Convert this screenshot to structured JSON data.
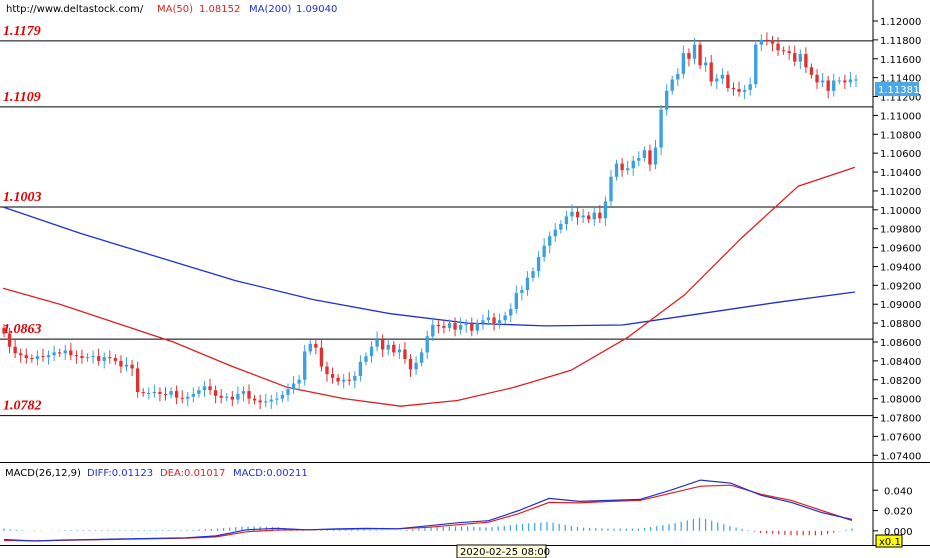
{
  "header": {
    "url": "http://www.deltastock.com/",
    "ma50_label": "MA(50)",
    "ma50_value": "1.08152",
    "ma200_label": "MA(200)",
    "ma200_value": "1.09040"
  },
  "macd_header": {
    "label": "MACD(26,12,9)",
    "diff": "DIFF:0.01123",
    "dea": "DEA:0.01017",
    "macd": "MACD:0.00211"
  },
  "current_price": "1.11381",
  "time_label": "2020-02-25 08:00",
  "zoom_label": "x0.1",
  "colors": {
    "bull": "#3aa0e0",
    "bear": "#e03030",
    "ma50": "#e02020",
    "ma200": "#2030d0",
    "level_text": "#e00000",
    "grid": "#000000"
  },
  "chart_data": [
    {
      "type": "candlestick",
      "series_name": "price",
      "ylim": [
        1.0735,
        1.1218
      ],
      "y_ticks": [
        "1.12000",
        "1.11800",
        "1.11600",
        "1.11400",
        "1.11200",
        "1.11000",
        "1.10800",
        "1.10600",
        "1.10400",
        "1.10200",
        "1.10000",
        "1.09800",
        "1.09600",
        "1.09400",
        "1.09200",
        "1.09000",
        "1.08800",
        "1.08600",
        "1.08400",
        "1.08200",
        "1.08000",
        "1.07800",
        "1.07600",
        "1.07400"
      ],
      "levels": [
        "1.1179",
        "1.1109",
        "1.1003",
        "1.0863",
        "1.0782"
      ],
      "closes": [
        1.0869,
        1.0855,
        1.0848,
        1.0846,
        1.0843,
        1.0842,
        1.0845,
        1.0844,
        1.0846,
        1.0849,
        1.0848,
        1.0851,
        1.0846,
        1.0845,
        1.0843,
        1.0844,
        1.0845,
        1.084,
        1.0844,
        1.0843,
        1.084,
        1.0834,
        1.0836,
        1.0832,
        1.0807,
        1.0806,
        1.0806,
        1.0807,
        1.0805,
        1.0804,
        1.0808,
        1.0801,
        1.08,
        1.0802,
        1.0805,
        1.0809,
        1.0813,
        1.0809,
        1.0803,
        1.0801,
        1.0802,
        1.0799,
        1.0805,
        1.0808,
        1.08,
        1.0798,
        1.0796,
        1.0797,
        1.0799,
        1.08,
        1.0804,
        1.081,
        1.0816,
        1.082,
        1.085,
        1.0858,
        1.0854,
        1.0834,
        1.0826,
        1.0822,
        1.0818,
        1.082,
        1.0819,
        1.0824,
        1.0839,
        1.0845,
        1.0855,
        1.0863,
        1.0852,
        1.0857,
        1.0849,
        1.0852,
        1.0842,
        1.0831,
        1.0838,
        1.0849,
        1.0866,
        1.0878,
        1.0877,
        1.0875,
        1.088,
        1.0873,
        1.0878,
        1.0879,
        1.0872,
        1.088,
        1.0883,
        1.0886,
        1.088,
        1.0883,
        1.0888,
        1.0895,
        1.0912,
        1.0915,
        1.0928,
        1.0935,
        1.095,
        1.0962,
        1.0972,
        1.0979,
        1.0985,
        1.0993,
        1.0998,
        1.0992,
        1.0994,
        1.099,
        1.0997,
        1.0991,
        1.1009,
        1.1035,
        1.1049,
        1.1042,
        1.1044,
        1.1052,
        1.1055,
        1.1063,
        1.1048,
        1.1066,
        1.1106,
        1.1126,
        1.1138,
        1.1144,
        1.1166,
        1.116,
        1.1175,
        1.1153,
        1.1156,
        1.1136,
        1.1139,
        1.1143,
        1.1129,
        1.1128,
        1.1125,
        1.1127,
        1.1133,
        1.1175,
        1.118,
        1.1179,
        1.1176,
        1.1169,
        1.1168,
        1.1166,
        1.1157,
        1.1165,
        1.1151,
        1.1143,
        1.1135,
        1.1137,
        1.1126,
        1.1137,
        1.1137,
        1.1135,
        1.1138,
        1.1138
      ]
    },
    {
      "type": "line",
      "series_name": "MA(50)",
      "values": [
        1.0917,
        1.09,
        1.088,
        1.086,
        1.0835,
        1.0812,
        1.08,
        1.0792,
        1.0798,
        1.0812,
        1.083,
        1.0865,
        1.091,
        1.097,
        1.1025,
        1.1045
      ]
    },
    {
      "type": "line",
      "series_name": "MA(200)",
      "values": [
        1.1003,
        1.0975,
        1.095,
        1.0925,
        1.0905,
        1.089,
        1.088,
        1.0877,
        1.0878,
        1.089,
        1.0902,
        1.0913
      ]
    },
    {
      "type": "line",
      "series_name": "MACD(26,12,9)",
      "ylim": [
        -0.012,
        0.058
      ],
      "y_ticks": [
        "0.040",
        "0.020",
        "0.000"
      ],
      "diff": [
        -0.0085,
        -0.01,
        -0.009,
        -0.0085,
        -0.008,
        -0.0075,
        -0.007,
        -0.005,
        0.001,
        0.0025,
        0.001,
        0.002,
        0.0025,
        0.002,
        0.005,
        0.008,
        0.01,
        0.02,
        0.032,
        0.029,
        0.03,
        0.031,
        0.04,
        0.05,
        0.047,
        0.035,
        0.028,
        0.018,
        0.0112
      ],
      "dea": [
        -0.0095,
        -0.0098,
        -0.0093,
        -0.0088,
        -0.0083,
        -0.0078,
        -0.0073,
        -0.006,
        -0.001,
        0.0008,
        0.001,
        0.0015,
        0.002,
        0.002,
        0.0035,
        0.006,
        0.0085,
        0.017,
        0.028,
        0.0275,
        0.029,
        0.03,
        0.037,
        0.044,
        0.045,
        0.036,
        0.03,
        0.02,
        0.0102
      ]
    }
  ]
}
